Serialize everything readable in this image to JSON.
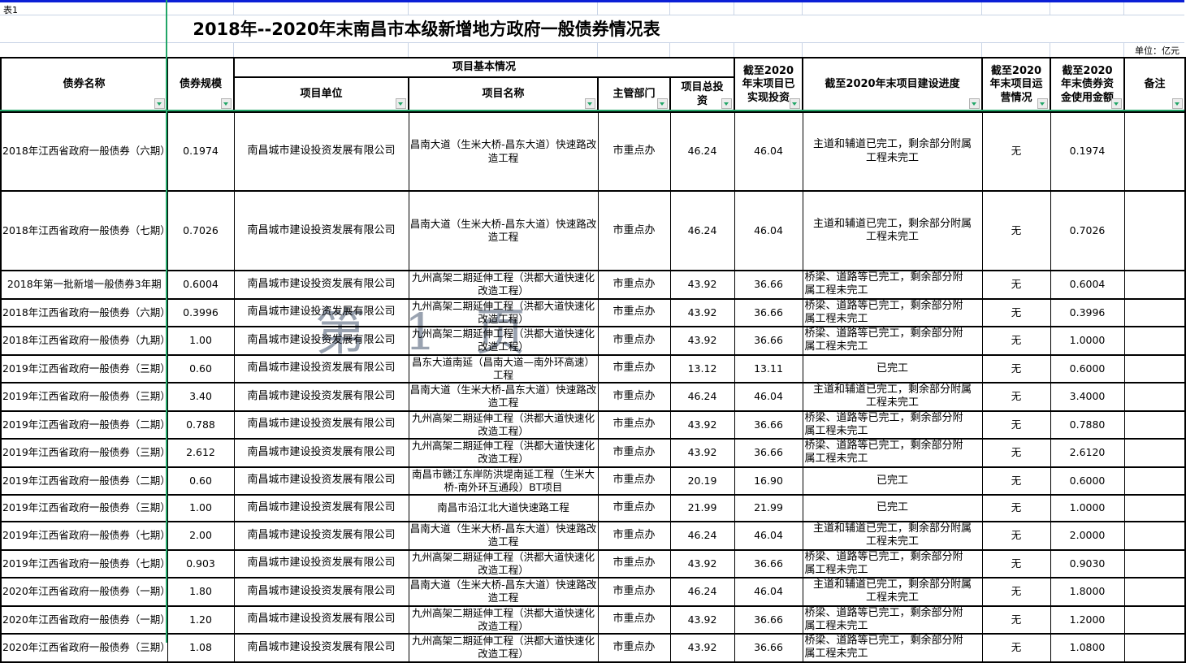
{
  "sheet_label": "表1",
  "title": "2018年--2020年末南昌市本级新增地方政府一般债券情况表",
  "unit_note": "单位：亿元",
  "watermark": "第 1 页",
  "colors": {
    "freeze_line_green": "#21a567",
    "filter_arrow_green": "#21a567",
    "top_border_blue": "#0b1fd6",
    "grid_line": "#c9d4e6",
    "watermark_gray": "#99a2b0"
  },
  "icons": {
    "filter_dropdown": "▼"
  },
  "table": {
    "group_header": "项目基本情况",
    "columns": {
      "bond_name": "债券名称",
      "bond_scale": "债券规模",
      "project_unit": "项目单位",
      "project_name": "项目名称",
      "department": "主管部门",
      "total_investment": "项目总投资",
      "realized_investment": "截至2020年末项目已实现投资",
      "construction_progress": "截至2020年末项目建设进度",
      "operation_status": "截至2020年末项目运营情况",
      "bond_fund_used": "截至2020年末债券资金使用金额",
      "remark": "备注"
    },
    "rows": [
      {
        "name": "2018年江西省政府一般债券（六期）",
        "scale": "0.1974",
        "unit": "南昌城市建设投资发展有限公司",
        "project": "昌南大道（生米大桥-昌东大道）快速路改造工程",
        "dept": "市重点办",
        "total": "46.24",
        "realized": "46.04",
        "progress": "主道和辅道已完工，剩余部分附属工程未完工",
        "progress_align": "center",
        "operation": "无",
        "used": "0.1974",
        "remark": ""
      },
      {
        "name": "2018年江西省政府一般债券（七期）",
        "scale": "0.7026",
        "unit": "南昌城市建设投资发展有限公司",
        "project": "昌南大道（生米大桥-昌东大道）快速路改造工程",
        "dept": "市重点办",
        "total": "46.24",
        "realized": "46.04",
        "progress": "主道和辅道已完工，剩余部分附属工程未完工",
        "progress_align": "center",
        "operation": "无",
        "used": "0.7026",
        "remark": ""
      },
      {
        "name": "2018年第一批新增一般债券3年期",
        "scale": "0.6004",
        "unit": "南昌城市建设投资发展有限公司",
        "project": "九州高架二期延伸工程（洪都大道快速化改造工程）",
        "dept": "市重点办",
        "total": "43.92",
        "realized": "36.66",
        "progress": "桥梁、道路等已完工，剩余部分附属工程未完工",
        "progress_align": "left",
        "operation": "无",
        "used": "0.6004",
        "remark": ""
      },
      {
        "name": "2018年江西省政府一般债券（六期）",
        "scale": "0.3996",
        "unit": "南昌城市建设投资发展有限公司",
        "project": "九州高架二期延伸工程（洪都大道快速化改造工程）",
        "dept": "市重点办",
        "total": "43.92",
        "realized": "36.66",
        "progress": "桥梁、道路等已完工，剩余部分附属工程未完工",
        "progress_align": "left",
        "operation": "无",
        "used": "0.3996",
        "remark": ""
      },
      {
        "name": "2018年江西省政府一般债券（九期）",
        "scale": "1.00",
        "unit": "南昌城市建设投资发展有限公司",
        "project": "九州高架二期延伸工程（洪都大道快速化改造工程）",
        "dept": "市重点办",
        "total": "43.92",
        "realized": "36.66",
        "progress": "桥梁、道路等已完工，剩余部分附属工程未完工",
        "progress_align": "left",
        "operation": "无",
        "used": "1.0000",
        "remark": ""
      },
      {
        "name": "2019年江西省政府一般债券（三期）",
        "scale": "0.60",
        "unit": "南昌城市建设投资发展有限公司",
        "project": "昌东大道南延（昌南大道—南外环高速）工程",
        "dept": "市重点办",
        "total": "13.12",
        "realized": "13.11",
        "progress": "已完工",
        "progress_align": "center",
        "operation": "无",
        "used": "0.6000",
        "remark": ""
      },
      {
        "name": "2019年江西省政府一般债券（三期）",
        "scale": "3.40",
        "unit": "南昌城市建设投资发展有限公司",
        "project": "昌南大道（生米大桥-昌东大道）快速路改造工程",
        "dept": "市重点办",
        "total": "46.24",
        "realized": "46.04",
        "progress": "主道和辅道已完工，剩余部分附属工程未完工",
        "progress_align": "center",
        "operation": "无",
        "used": "3.4000",
        "remark": ""
      },
      {
        "name": "2019年江西省政府一般债券（二期）",
        "scale": "0.788",
        "unit": "南昌城市建设投资发展有限公司",
        "project": "九州高架二期延伸工程（洪都大道快速化改造工程）",
        "dept": "市重点办",
        "total": "43.92",
        "realized": "36.66",
        "progress": "桥梁、道路等已完工，剩余部分附属工程未完工",
        "progress_align": "left",
        "operation": "无",
        "used": "0.7880",
        "remark": ""
      },
      {
        "name": "2019年江西省政府一般债券（三期）",
        "scale": "2.612",
        "unit": "南昌城市建设投资发展有限公司",
        "project": "九州高架二期延伸工程（洪都大道快速化改造工程）",
        "dept": "市重点办",
        "total": "43.92",
        "realized": "36.66",
        "progress": "桥梁、道路等已完工，剩余部分附属工程未完工",
        "progress_align": "left",
        "operation": "无",
        "used": "2.6120",
        "remark": ""
      },
      {
        "name": "2019年江西省政府一般债券（二期）",
        "scale": "0.60",
        "unit": "南昌城市建设投资发展有限公司",
        "project": "南昌市赣江东岸防洪堤南延工程（生米大桥-南外环互通段）BT项目",
        "dept": "市重点办",
        "total": "20.19",
        "realized": "16.90",
        "progress": "已完工",
        "progress_align": "center",
        "operation": "无",
        "used": "0.6000",
        "remark": ""
      },
      {
        "name": "2019年江西省政府一般债券（三期）",
        "scale": "1.00",
        "unit": "南昌城市建设投资发展有限公司",
        "project": "南昌市沿江北大道快速路工程",
        "dept": "市重点办",
        "total": "21.99",
        "realized": "21.99",
        "progress": "已完工",
        "progress_align": "center",
        "operation": "无",
        "used": "1.0000",
        "remark": ""
      },
      {
        "name": "2019年江西省政府一般债券（七期）",
        "scale": "2.00",
        "unit": "南昌城市建设投资发展有限公司",
        "project": "昌南大道（生米大桥-昌东大道）快速路改造工程",
        "dept": "市重点办",
        "total": "46.24",
        "realized": "46.04",
        "progress": "主道和辅道已完工，剩余部分附属工程未完工",
        "progress_align": "center",
        "operation": "无",
        "used": "2.0000",
        "remark": ""
      },
      {
        "name": "2019年江西省政府一般债券（七期）",
        "scale": "0.903",
        "unit": "南昌城市建设投资发展有限公司",
        "project": "九州高架二期延伸工程（洪都大道快速化改造工程）",
        "dept": "市重点办",
        "total": "43.92",
        "realized": "36.66",
        "progress": "桥梁、道路等已完工，剩余部分附属工程未完工",
        "progress_align": "left",
        "operation": "无",
        "used": "0.9030",
        "remark": ""
      },
      {
        "name": "2020年江西省政府一般债券（一期）",
        "scale": "1.80",
        "unit": "南昌城市建设投资发展有限公司",
        "project": "昌南大道（生米大桥-昌东大道）快速路改造工程",
        "dept": "市重点办",
        "total": "46.24",
        "realized": "46.04",
        "progress": "主道和辅道已完工，剩余部分附属工程未完工",
        "progress_align": "center",
        "operation": "无",
        "used": "1.8000",
        "remark": ""
      },
      {
        "name": "2020年江西省政府一般债券（一期）",
        "scale": "1.20",
        "unit": "南昌城市建设投资发展有限公司",
        "project": "九州高架二期延伸工程（洪都大道快速化改造工程）",
        "dept": "市重点办",
        "total": "43.92",
        "realized": "36.66",
        "progress": "桥梁、道路等已完工，剩余部分附属工程未完工",
        "progress_align": "left",
        "operation": "无",
        "used": "1.2000",
        "remark": ""
      },
      {
        "name": "2020年江西省政府一般债券（三期）",
        "scale": "1.08",
        "unit": "南昌城市建设投资发展有限公司",
        "project": "九州高架二期延伸工程（洪都大道快速化改造工程）",
        "dept": "市重点办",
        "total": "43.92",
        "realized": "36.66",
        "progress": "桥梁、道路等已完工，剩余部分附属工程未完工",
        "progress_align": "left",
        "operation": "无",
        "used": "1.0800",
        "remark": ""
      }
    ]
  }
}
